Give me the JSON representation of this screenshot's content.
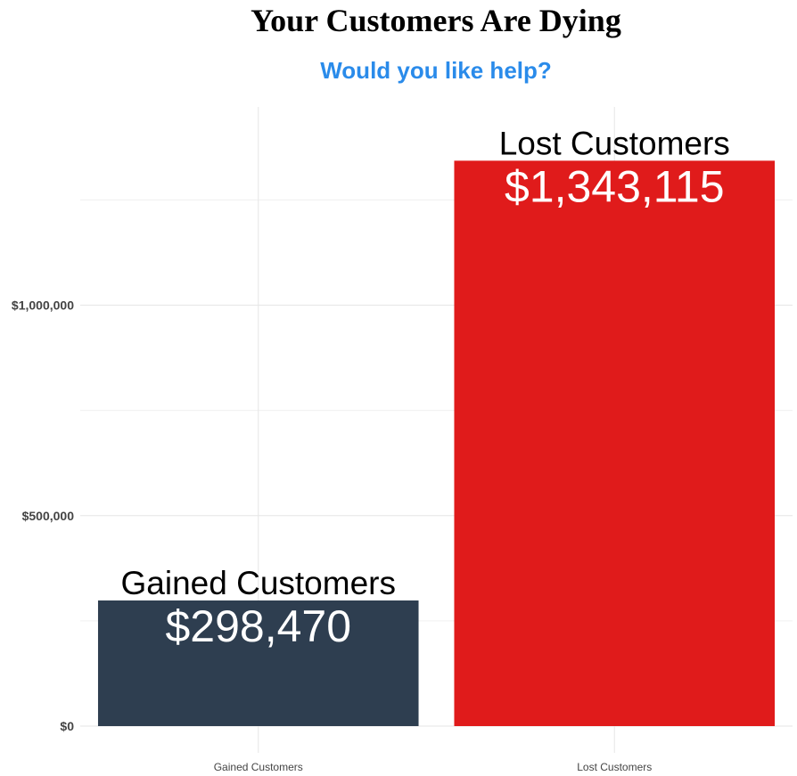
{
  "chart_data": {
    "type": "bar",
    "title": "Your Customers Are Dying",
    "subtitle": "Would you like help?",
    "categories": [
      "Gained Customers",
      "Lost Customers"
    ],
    "values": [
      298470,
      1343115
    ],
    "value_labels": [
      "$298,470",
      "$1,343,115"
    ],
    "bar_colors": [
      "#2e3e50",
      "#e01b1b"
    ],
    "title_color": "#000000",
    "subtitle_color": "#2a8bea",
    "ylim": [
      0,
      1450000
    ],
    "yticks": [
      0,
      500000,
      1000000
    ],
    "ytick_labels": [
      "$0",
      "$500,000",
      "$1,000,000"
    ],
    "minor_gridlines": [
      250000,
      750000,
      1250000
    ],
    "xlabel": "",
    "ylabel": "",
    "grid": true,
    "legend": "none"
  }
}
